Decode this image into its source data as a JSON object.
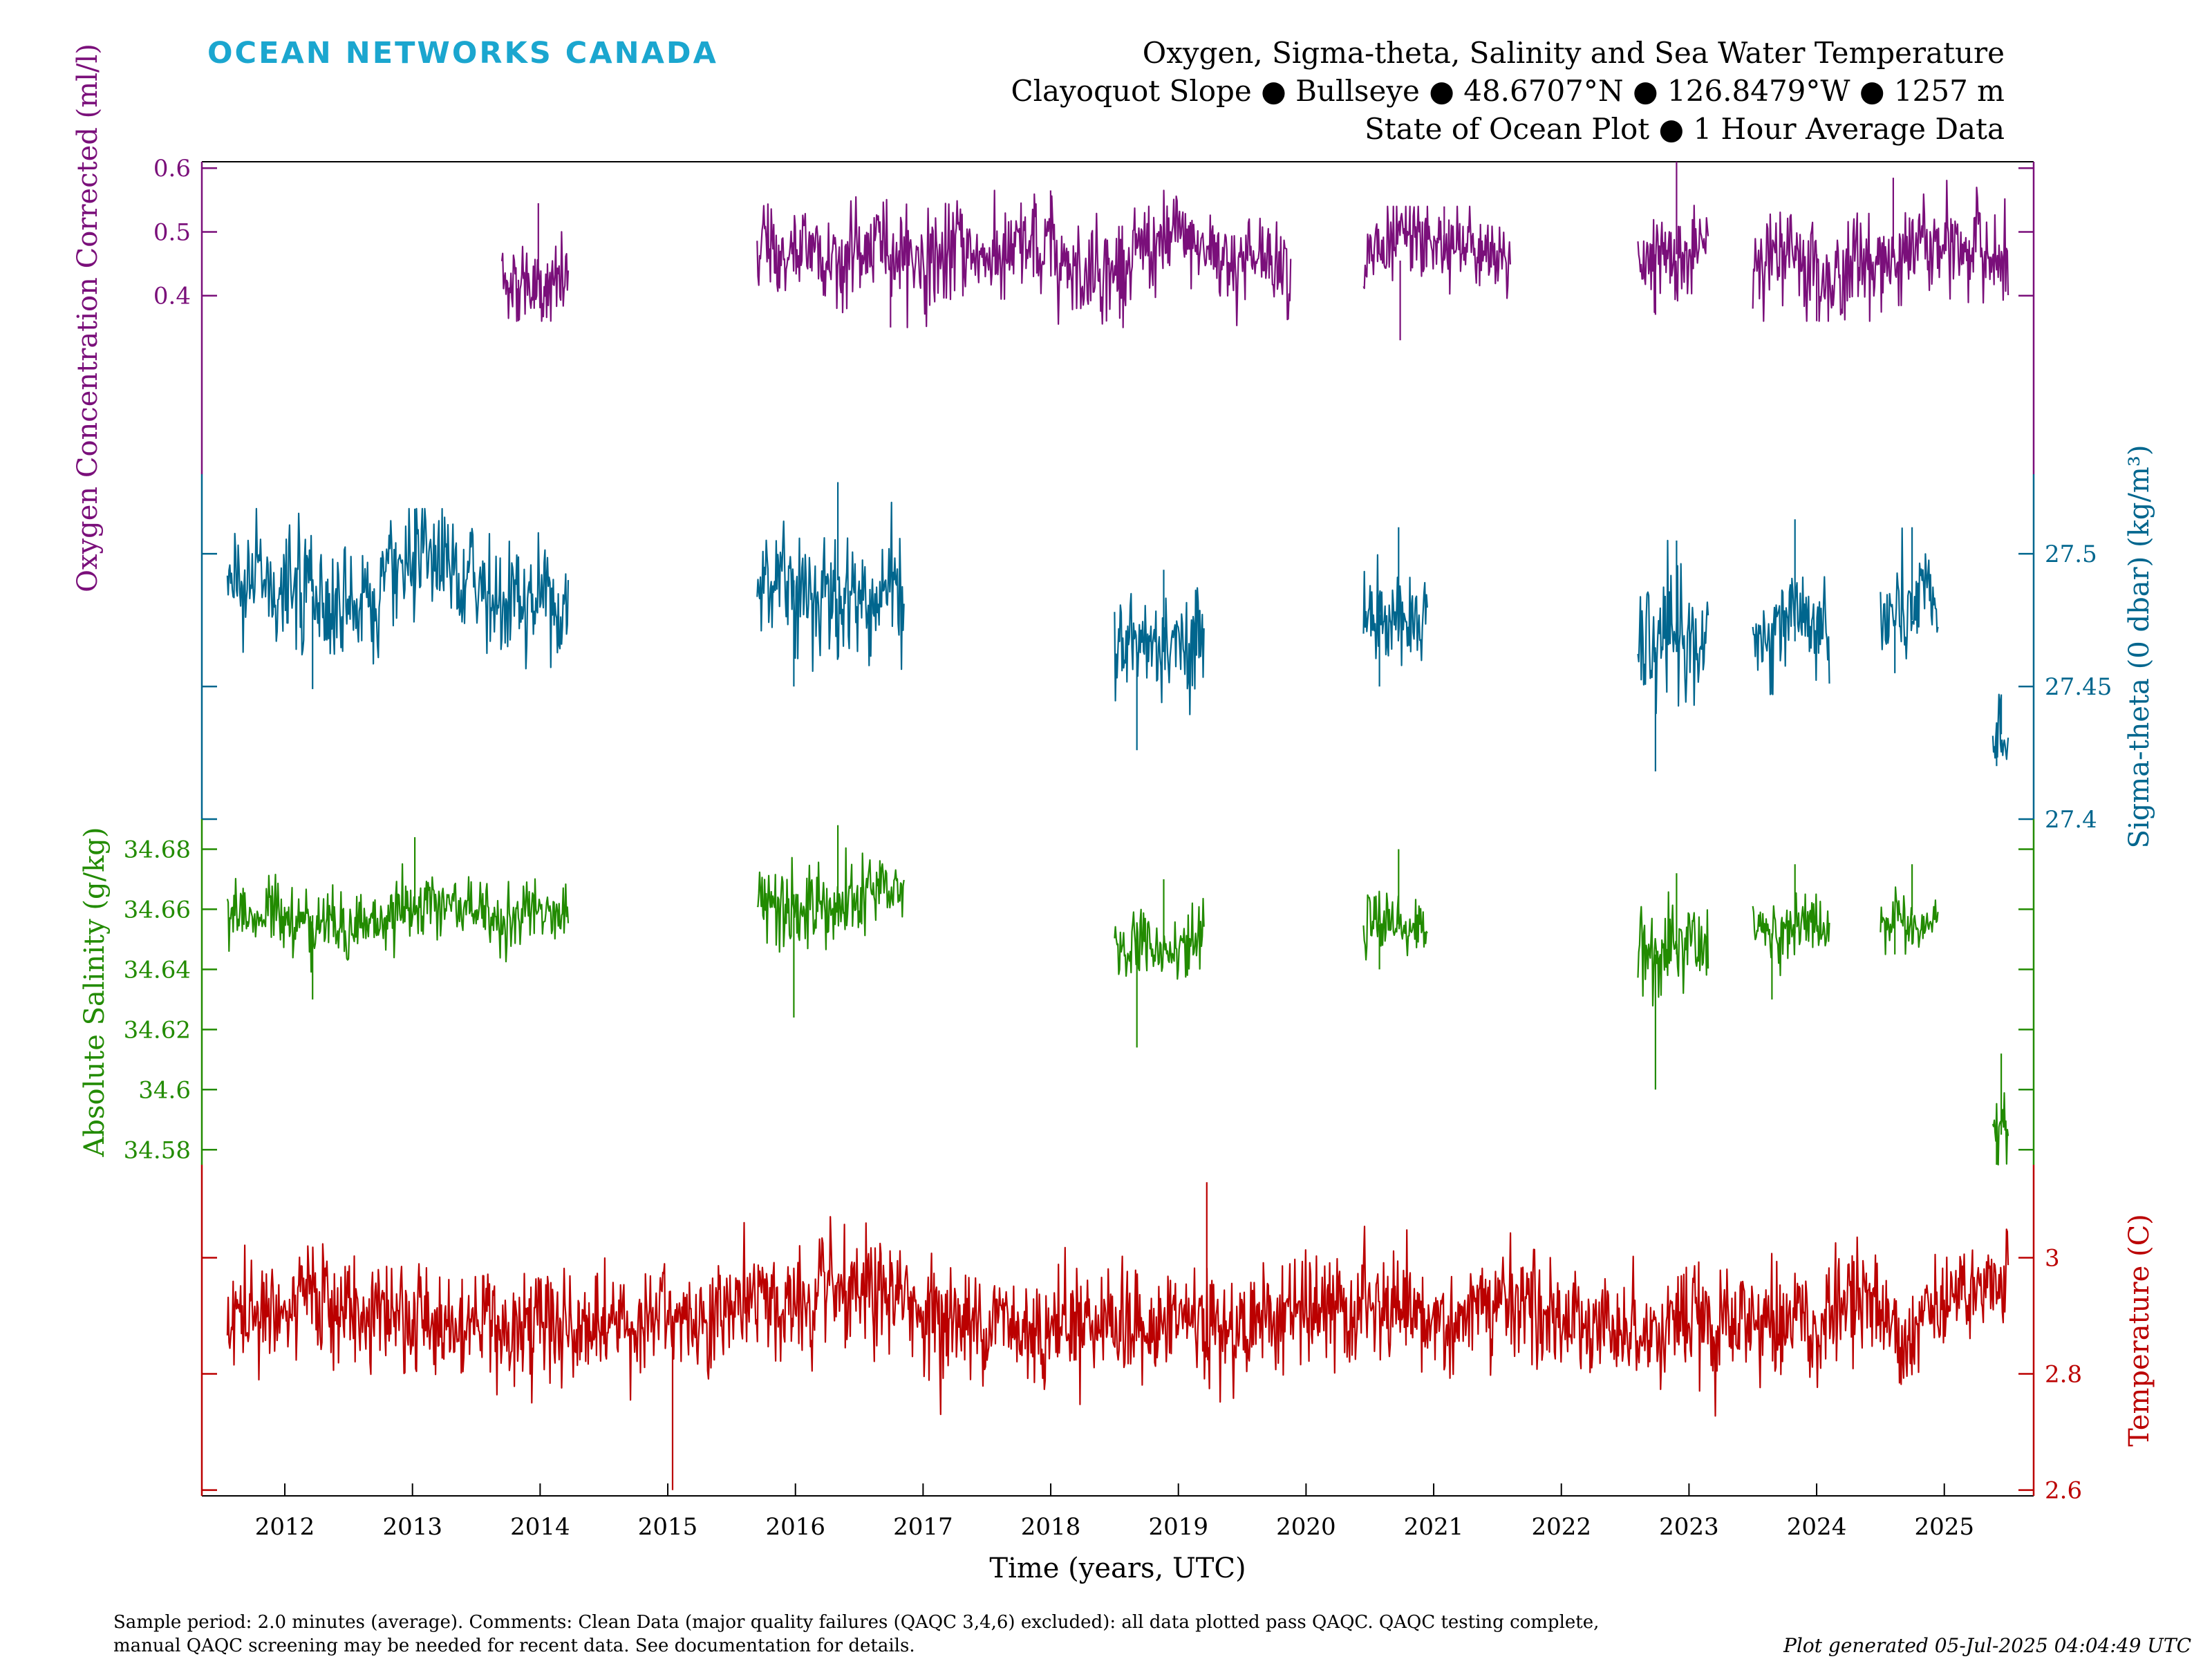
{
  "header": {
    "brand": "OCEAN NETWORKS CANADA",
    "title_lines": [
      "Oxygen, Sigma-theta, Salinity and Sea Water Temperature",
      "Clayoquot Slope ● Bullseye ● 48.6707°N ● 126.8479°W ● 1257 m",
      "State of Ocean Plot ● 1 Hour Average Data"
    ]
  },
  "footer": {
    "line1": "Sample period: 2.0 minutes (average). Comments: Clean Data (major quality failures (QAQC 3,4,6) excluded): all data plotted pass QAQC. QAQC testing complete,",
    "line2": "manual QAQC screening may be needed for recent data. See documentation for details.",
    "generated": "Plot generated 05-Jul-2025 04:04:49 UTC"
  },
  "chart_data": {
    "type": "line",
    "xlabel": "Time (years, UTC)",
    "x_ticks": [
      "2012",
      "2013",
      "2014",
      "2015",
      "2016",
      "2017",
      "2018",
      "2019",
      "2020",
      "2021",
      "2022",
      "2023",
      "2024",
      "2025"
    ],
    "xlim": [
      2011.35,
      2025.7
    ],
    "grid": false,
    "series": [
      {
        "key": "oxygen",
        "axis_label": "Oxygen Concentration Corrected (ml/l)",
        "axis_side": "left",
        "color": "#7a0f7a",
        "ticks": [
          "0.4",
          "0.5",
          "0.6"
        ],
        "ylim": [
          0.12,
          0.61
        ],
        "segments": [
          {
            "start": 2013.7,
            "end": 2014.22,
            "mean": 0.425,
            "noise": 0.035,
            "min": 0.36,
            "max": 0.545
          },
          {
            "start": 2015.7,
            "end": 2019.88,
            "mean": 0.465,
            "noise": 0.04,
            "min": 0.35,
            "max": 0.565
          },
          {
            "start": 2020.45,
            "end": 2021.6,
            "mean": 0.455,
            "noise": 0.035,
            "min": 0.33,
            "max": 0.54
          },
          {
            "start": 2022.6,
            "end": 2023.15,
            "mean": 0.465,
            "noise": 0.035,
            "min": 0.37,
            "max": 0.61
          },
          {
            "start": 2023.5,
            "end": 2025.5,
            "mean": 0.465,
            "noise": 0.04,
            "min": 0.36,
            "max": 0.585
          }
        ]
      },
      {
        "key": "sigma_theta",
        "axis_label": "Sigma-theta (0 dbar) (kg/m³)",
        "axis_side": "right",
        "color": "#00668e",
        "ticks": [
          "27.4",
          "27.45",
          "27.5"
        ],
        "ylim": [
          27.4,
          27.53
        ],
        "segments": [
          {
            "start": 2011.55,
            "end": 2014.22,
            "mean": 27.484,
            "noise": 0.012,
            "min": 27.449,
            "max": 27.517
          },
          {
            "start": 2015.7,
            "end": 2016.85,
            "mean": 27.49,
            "noise": 0.013,
            "min": 27.45,
            "max": 27.527
          },
          {
            "start": 2018.5,
            "end": 2019.2,
            "mean": 27.463,
            "noise": 0.01,
            "min": 27.426,
            "max": 27.494
          },
          {
            "start": 2020.45,
            "end": 2020.95,
            "mean": 27.477,
            "noise": 0.01,
            "min": 27.45,
            "max": 27.51
          },
          {
            "start": 2022.6,
            "end": 2023.15,
            "mean": 27.463,
            "noise": 0.013,
            "min": 27.418,
            "max": 27.505
          },
          {
            "start": 2023.5,
            "end": 2024.1,
            "mean": 27.467,
            "noise": 0.01,
            "min": 27.447,
            "max": 27.513
          },
          {
            "start": 2024.5,
            "end": 2024.95,
            "mean": 27.475,
            "noise": 0.01,
            "min": 27.455,
            "max": 27.51
          },
          {
            "start": 2025.38,
            "end": 2025.5,
            "mean": 27.432,
            "noise": 0.008,
            "min": 27.42,
            "max": 27.447
          }
        ]
      },
      {
        "key": "salinity",
        "axis_label": "Absolute Salinity (g/kg)",
        "axis_side": "left",
        "color": "#228b00",
        "ticks": [
          "34.58",
          "34.6",
          "34.62",
          "34.64",
          "34.66",
          "34.68"
        ],
        "ylim": [
          34.575,
          34.69
        ],
        "segments": [
          {
            "start": 2011.55,
            "end": 2014.22,
            "mean": 34.658,
            "noise": 0.006,
            "min": 34.63,
            "max": 34.684
          },
          {
            "start": 2015.7,
            "end": 2016.85,
            "mean": 34.665,
            "noise": 0.007,
            "min": 34.624,
            "max": 34.688
          },
          {
            "start": 2018.5,
            "end": 2019.2,
            "mean": 34.648,
            "noise": 0.006,
            "min": 34.614,
            "max": 34.67
          },
          {
            "start": 2020.45,
            "end": 2020.95,
            "mean": 34.655,
            "noise": 0.005,
            "min": 34.64,
            "max": 34.68
          },
          {
            "start": 2022.6,
            "end": 2023.15,
            "mean": 34.645,
            "noise": 0.008,
            "min": 34.6,
            "max": 34.672
          },
          {
            "start": 2023.5,
            "end": 2024.1,
            "mean": 34.652,
            "noise": 0.006,
            "min": 34.63,
            "max": 34.675
          },
          {
            "start": 2024.5,
            "end": 2024.95,
            "mean": 34.658,
            "noise": 0.005,
            "min": 34.645,
            "max": 34.675
          },
          {
            "start": 2025.38,
            "end": 2025.5,
            "mean": 34.585,
            "noise": 0.005,
            "min": 34.575,
            "max": 34.612
          }
        ]
      },
      {
        "key": "temperature",
        "axis_label": "Temperature (C)",
        "axis_side": "right",
        "color": "#bb0000",
        "ticks": [
          "2.6",
          "2.8",
          "3"
        ],
        "ylim": [
          2.59,
          3.16
        ],
        "segments": [
          {
            "start": 2011.55,
            "end": 2025.5,
            "mean": 2.9,
            "noise": 0.05,
            "min": 2.6,
            "max": 3.13
          }
        ]
      }
    ]
  }
}
